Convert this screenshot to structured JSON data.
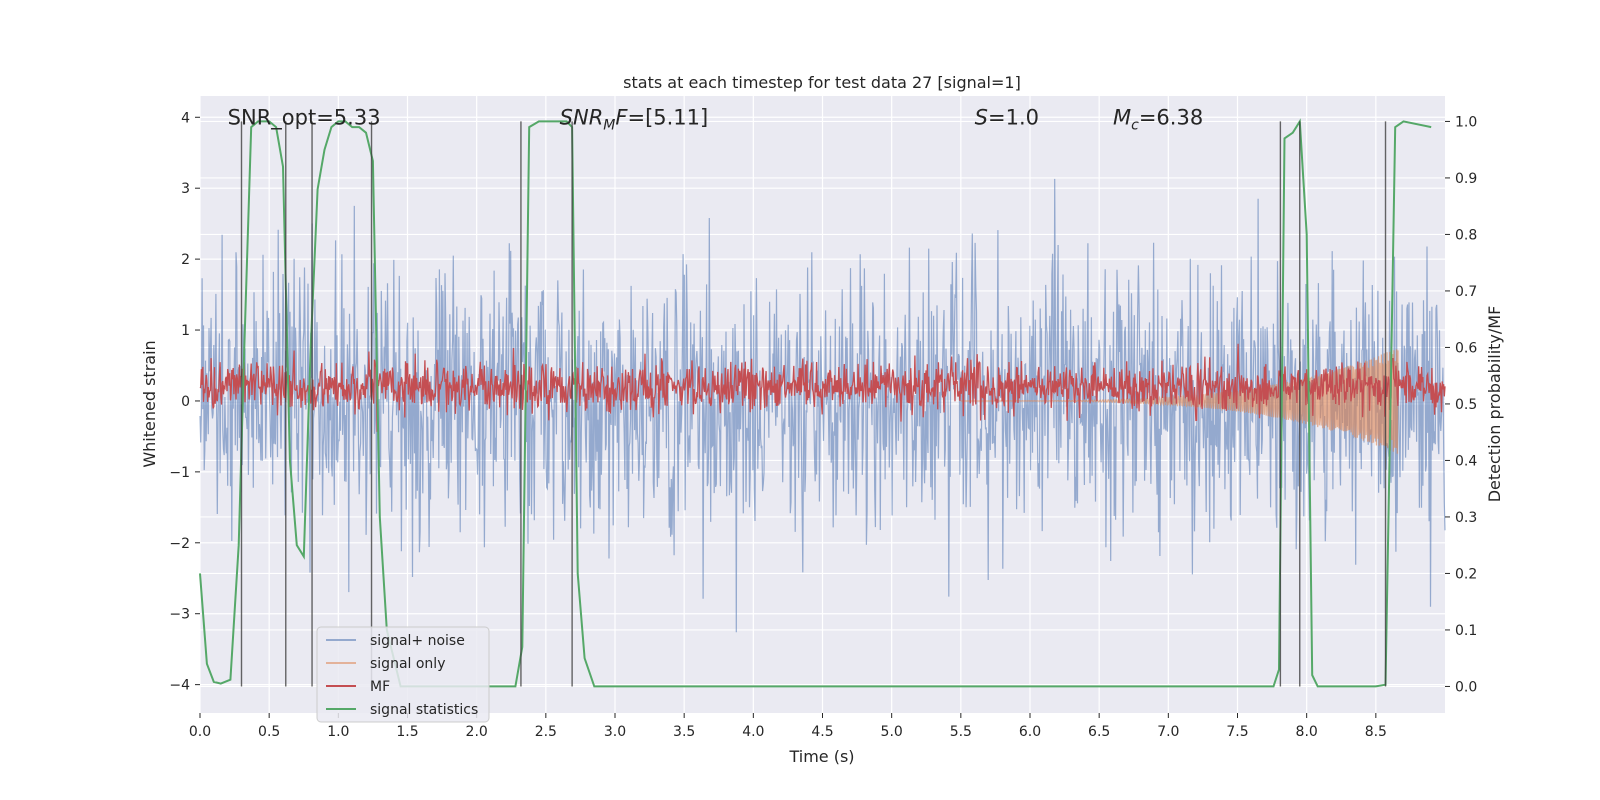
{
  "chart_data": {
    "type": "line",
    "title": "stats at each timestep for test data 27 [signal=1]",
    "xlabel": "Time (s)",
    "ylabel": "Whitened strain",
    "ylabel_right": "Detection probability/MF",
    "xlim": [
      0.0,
      9.0
    ],
    "ylim": [
      -4.4,
      4.3
    ],
    "ylim_right": [
      -0.047,
      1.045
    ],
    "x_ticks": [
      0.0,
      0.5,
      1.0,
      1.5,
      2.0,
      2.5,
      3.0,
      3.5,
      4.0,
      4.5,
      5.0,
      5.5,
      6.0,
      6.5,
      7.0,
      7.5,
      8.0,
      8.5
    ],
    "x_tick_labels": [
      "0.0",
      "0.5",
      "1.0",
      "1.5",
      "2.0",
      "2.5",
      "3.0",
      "3.5",
      "4.0",
      "4.5",
      "5.0",
      "5.5",
      "6.0",
      "6.5",
      "7.0",
      "7.5",
      "8.0",
      "8.5"
    ],
    "y_ticks": [
      -4,
      -3,
      -2,
      -1,
      0,
      1,
      2,
      3,
      4
    ],
    "y_tick_labels": [
      "−4",
      "−3",
      "−2",
      "−1",
      "0",
      "1",
      "2",
      "3",
      "4"
    ],
    "y_ticks_right": [
      0.0,
      0.1,
      0.2,
      0.3,
      0.4,
      0.5,
      0.6,
      0.7,
      0.8,
      0.9,
      1.0
    ],
    "y_tick_labels_right": [
      "0.0",
      "0.1",
      "0.2",
      "0.3",
      "0.4",
      "0.5",
      "0.6",
      "0.7",
      "0.8",
      "0.9",
      "1.0"
    ],
    "annotations": [
      {
        "text": "SNR_opt=5.33",
        "x": 0.2,
        "y": 4.0
      },
      {
        "text": "SNR",
        "sub": "M",
        "tail": "F=[5.11]",
        "italic": true,
        "x": 2.6,
        "y": 4.0
      },
      {
        "text": "S",
        "tail": "=1.0",
        "italic": true,
        "x": 5.6,
        "y": 4.0
      },
      {
        "text": "M",
        "sub": "c",
        "tail": "=6.38",
        "italic": true,
        "x": 6.6,
        "y": 4.0
      }
    ],
    "vlines": [
      0.3,
      0.62,
      0.81,
      1.24,
      2.32,
      2.69,
      7.81,
      7.95,
      8.57
    ],
    "series": [
      {
        "name": "signal+ noise",
        "axis": "left",
        "color": "#4c72b0",
        "style": "noise",
        "amplitude": 0.9,
        "n_points": 1800
      },
      {
        "name": "signal only",
        "axis": "left",
        "color": "#dd8452",
        "style": "chirp",
        "start": 5.5,
        "end": 8.66,
        "max_amplitude": 0.75
      },
      {
        "name": "MF",
        "axis": "right",
        "color": "#c44e52",
        "style": "noise",
        "baseline": 0.53,
        "amplitude": 0.022,
        "n_points": 1800,
        "peak": {
          "x": 8.62,
          "y": 0.58
        }
      },
      {
        "name": "signal statistics",
        "axis": "right",
        "color": "#55a868",
        "x": [
          0.0,
          0.05,
          0.1,
          0.15,
          0.22,
          0.28,
          0.32,
          0.37,
          0.42,
          0.5,
          0.55,
          0.6,
          0.65,
          0.7,
          0.75,
          0.8,
          0.85,
          0.9,
          0.95,
          1.0,
          1.05,
          1.1,
          1.15,
          1.2,
          1.25,
          1.3,
          1.35,
          1.45,
          1.6,
          1.8,
          2.0,
          2.2,
          2.28,
          2.33,
          2.38,
          2.45,
          2.55,
          2.65,
          2.69,
          2.73,
          2.78,
          2.85,
          3.0,
          4.0,
          5.0,
          6.0,
          7.0,
          7.5,
          7.76,
          7.8,
          7.84,
          7.9,
          7.95,
          8.0,
          8.04,
          8.08,
          8.13,
          8.2,
          8.3,
          8.5,
          8.57,
          8.61,
          8.64,
          8.7,
          8.9
        ],
        "y": [
          0.2,
          0.04,
          0.008,
          0.005,
          0.012,
          0.25,
          0.6,
          0.99,
          1.0,
          1.0,
          0.99,
          0.92,
          0.4,
          0.25,
          0.23,
          0.6,
          0.88,
          0.95,
          0.99,
          1.0,
          1.0,
          0.99,
          0.99,
          0.98,
          0.93,
          0.3,
          0.1,
          0.0,
          0.0,
          0.0,
          0.0,
          0.0,
          0.0,
          0.07,
          0.99,
          1.0,
          1.0,
          1.0,
          0.99,
          0.2,
          0.05,
          0.0,
          0.0,
          0.0,
          0.0,
          0.0,
          0.0,
          0.0,
          0.0,
          0.03,
          0.97,
          0.98,
          1.0,
          0.8,
          0.02,
          0.0,
          0.0,
          0.0,
          0.0,
          0.0,
          0.003,
          0.55,
          0.99,
          1.0,
          0.99
        ]
      }
    ],
    "legend": {
      "location": "lower-left",
      "entries": [
        "signal+ noise",
        "signal only",
        "MF",
        "signal statistics"
      ]
    }
  }
}
